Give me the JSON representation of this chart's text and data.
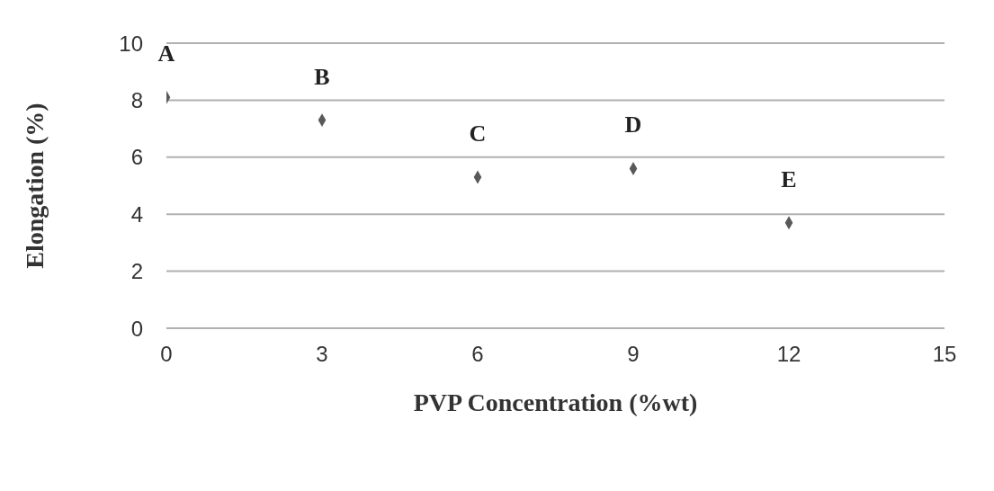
{
  "chart_data": {
    "type": "scatter",
    "xlabel": "PVP Concentration (%wt)",
    "ylabel": "Elongation (%)",
    "x": [
      0,
      3,
      6,
      9,
      12
    ],
    "series": [
      {
        "color": "#595959",
        "values": [
          8.1,
          7.3,
          5.3,
          5.6,
          3.7
        ]
      }
    ],
    "xlim": [
      0,
      15
    ],
    "xticks": [
      0,
      3,
      6,
      9,
      12,
      15
    ],
    "ylim": [
      0,
      10
    ],
    "yticks": [
      0,
      2,
      4,
      6,
      8,
      10
    ],
    "grid": "y",
    "marker": "diamond",
    "annotations": [
      {
        "text": "A",
        "x": 0,
        "y": 8.1
      },
      {
        "text": "B",
        "x": 3,
        "y": 7.3
      },
      {
        "text": "C",
        "x": 6,
        "y": 5.3
      },
      {
        "text": "D",
        "x": 9,
        "y": 5.6
      },
      {
        "text": "E",
        "x": 12,
        "y": 3.7
      }
    ]
  }
}
